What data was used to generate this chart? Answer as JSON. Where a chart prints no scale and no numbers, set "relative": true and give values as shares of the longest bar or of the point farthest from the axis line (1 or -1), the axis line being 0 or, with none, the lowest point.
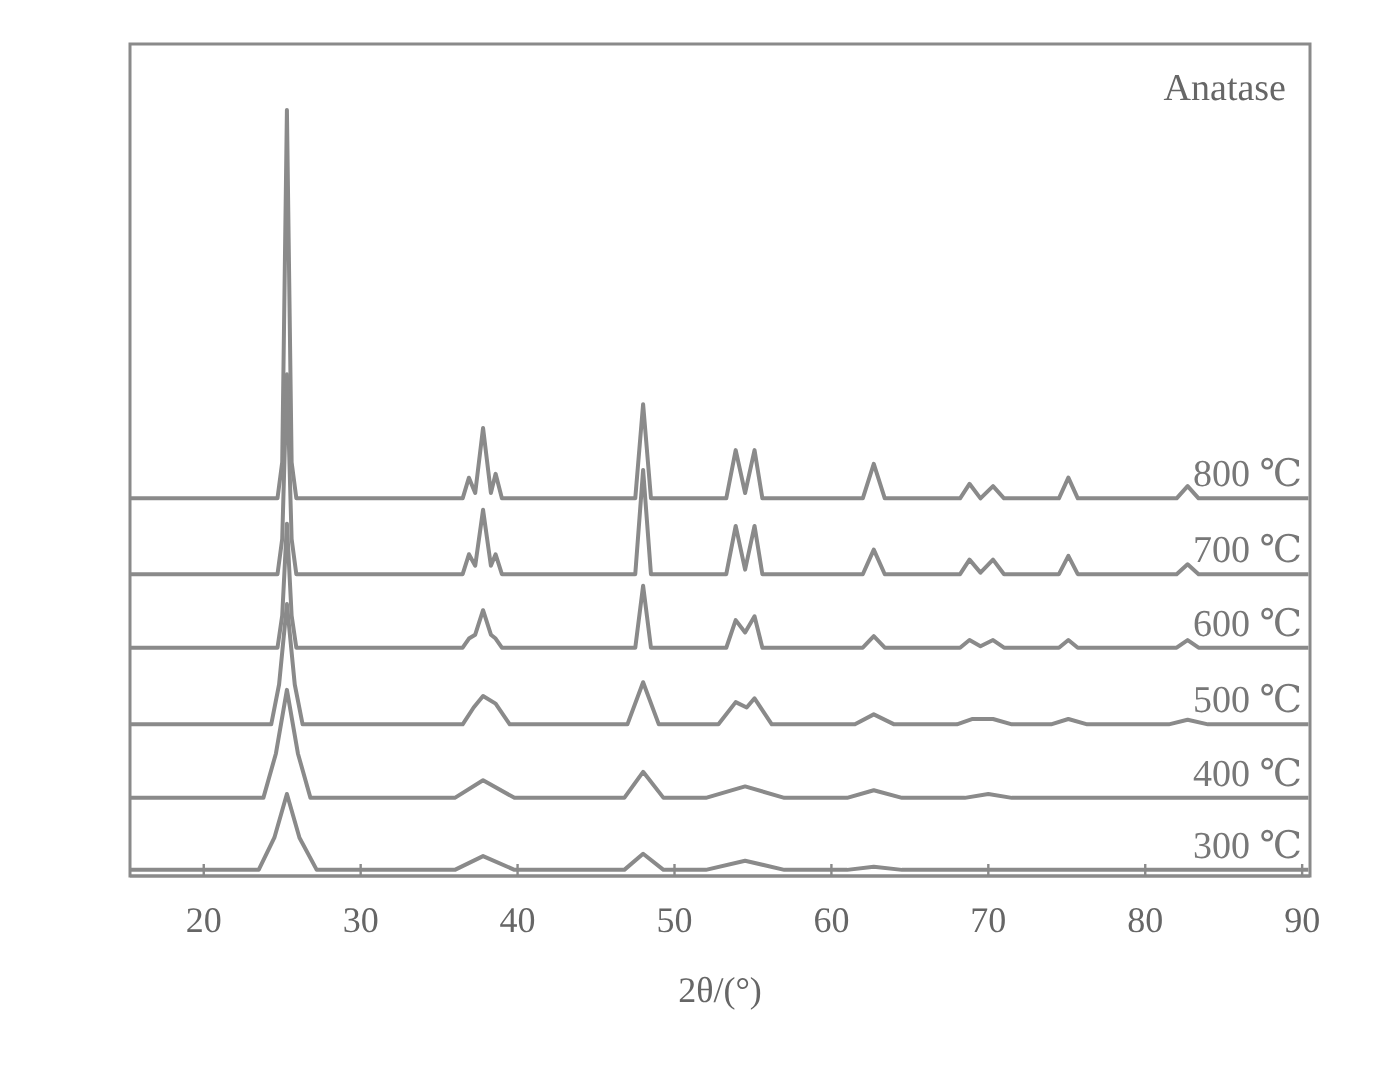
{
  "chart_data": {
    "type": "line",
    "relative": true,
    "xlabel": "2θ/(°)",
    "annotations": [
      "Anatase"
    ],
    "xlim": [
      15.3,
      90.5
    ],
    "xticks": [
      20,
      30,
      40,
      50,
      60,
      70,
      80,
      90
    ],
    "series": [
      {
        "name": "800 ℃",
        "color": "#8a8a8a",
        "x": [
          15.3,
          24.7,
          25.0,
          25.3,
          25.6,
          25.9,
          36.5,
          36.9,
          37.3,
          37.8,
          38.3,
          38.6,
          39.0,
          47.5,
          48.0,
          48.5,
          53.3,
          53.9,
          54.5,
          55.1,
          55.6,
          62.0,
          62.7,
          63.4,
          68.2,
          68.8,
          69.5,
          70.3,
          71.0,
          74.5,
          75.1,
          75.7,
          82.0,
          82.7,
          83.4,
          90.4
        ],
        "values": [
          0.493,
          0.493,
          0.54,
          1.0,
          0.54,
          0.493,
          0.493,
          0.52,
          0.5,
          0.585,
          0.5,
          0.525,
          0.493,
          0.493,
          0.616,
          0.493,
          0.493,
          0.556,
          0.5,
          0.556,
          0.493,
          0.493,
          0.538,
          0.493,
          0.493,
          0.512,
          0.493,
          0.509,
          0.493,
          0.493,
          0.52,
          0.493,
          0.493,
          0.509,
          0.493,
          0.493
        ]
      },
      {
        "name": "700 ℃",
        "color": "#8a8a8a",
        "x": [
          15.3,
          24.7,
          25.0,
          25.3,
          25.6,
          25.9,
          36.5,
          36.9,
          37.3,
          37.8,
          38.3,
          38.6,
          39.0,
          47.5,
          48.0,
          48.5,
          53.3,
          53.9,
          54.5,
          55.1,
          55.6,
          62.0,
          62.7,
          63.4,
          68.2,
          68.8,
          69.5,
          70.3,
          71.0,
          74.5,
          75.1,
          75.7,
          82.0,
          82.7,
          83.4,
          90.4
        ],
        "values": [
          0.394,
          0.394,
          0.44,
          0.655,
          0.44,
          0.394,
          0.394,
          0.42,
          0.405,
          0.478,
          0.405,
          0.42,
          0.394,
          0.394,
          0.53,
          0.394,
          0.394,
          0.457,
          0.4,
          0.457,
          0.394,
          0.394,
          0.426,
          0.394,
          0.394,
          0.413,
          0.396,
          0.413,
          0.394,
          0.394,
          0.418,
          0.394,
          0.394,
          0.407,
          0.394,
          0.394
        ]
      },
      {
        "name": "600 ℃",
        "color": "#8a8a8a",
        "x": [
          15.3,
          24.7,
          25.0,
          25.3,
          25.6,
          25.9,
          36.5,
          36.9,
          37.3,
          37.8,
          38.3,
          38.6,
          39.0,
          47.5,
          48.0,
          48.5,
          53.3,
          53.9,
          54.5,
          55.1,
          55.6,
          62.0,
          62.7,
          63.4,
          68.2,
          68.8,
          69.5,
          70.3,
          71.0,
          74.5,
          75.1,
          75.7,
          82.0,
          82.7,
          83.4,
          90.4
        ],
        "values": [
          0.298,
          0.298,
          0.34,
          0.46,
          0.34,
          0.298,
          0.298,
          0.31,
          0.315,
          0.347,
          0.315,
          0.31,
          0.298,
          0.298,
          0.379,
          0.298,
          0.298,
          0.334,
          0.318,
          0.339,
          0.298,
          0.298,
          0.313,
          0.298,
          0.298,
          0.308,
          0.3,
          0.308,
          0.298,
          0.298,
          0.308,
          0.298,
          0.298,
          0.308,
          0.298,
          0.298
        ]
      },
      {
        "name": "500 ℃",
        "color": "#8a8a8a",
        "x": [
          15.3,
          24.3,
          24.8,
          25.3,
          25.8,
          26.3,
          36.5,
          37.2,
          37.8,
          38.6,
          39.5,
          47.0,
          48.0,
          49.0,
          52.8,
          53.9,
          54.6,
          55.1,
          56.2,
          61.5,
          62.7,
          64.0,
          68.0,
          69.0,
          70.3,
          71.5,
          74.0,
          75.1,
          76.3,
          81.5,
          82.7,
          84.0,
          90.4
        ],
        "values": [
          0.198,
          0.198,
          0.25,
          0.355,
          0.25,
          0.198,
          0.198,
          0.22,
          0.235,
          0.225,
          0.198,
          0.198,
          0.253,
          0.198,
          0.198,
          0.227,
          0.22,
          0.232,
          0.198,
          0.198,
          0.211,
          0.198,
          0.198,
          0.205,
          0.205,
          0.198,
          0.198,
          0.205,
          0.198,
          0.198,
          0.204,
          0.198,
          0.198
        ]
      },
      {
        "name": "400 ℃",
        "color": "#8a8a8a",
        "x": [
          15.3,
          23.8,
          24.6,
          25.3,
          26.0,
          26.8,
          36.0,
          37.8,
          39.8,
          46.8,
          48.0,
          49.3,
          52.0,
          54.5,
          57.0,
          61.0,
          62.7,
          64.5,
          68.5,
          70.0,
          71.5,
          90.4
        ],
        "values": [
          0.102,
          0.102,
          0.16,
          0.243,
          0.16,
          0.102,
          0.102,
          0.125,
          0.102,
          0.102,
          0.136,
          0.102,
          0.102,
          0.117,
          0.102,
          0.102,
          0.112,
          0.102,
          0.102,
          0.107,
          0.102,
          0.102
        ]
      },
      {
        "name": "300 ℃",
        "color": "#8a8a8a",
        "x": [
          15.3,
          23.5,
          24.5,
          25.3,
          26.1,
          27.2,
          36.0,
          37.8,
          39.8,
          46.8,
          48.0,
          49.3,
          52.0,
          54.5,
          57.0,
          61.0,
          62.7,
          64.5,
          90.4
        ],
        "values": [
          0.008,
          0.008,
          0.05,
          0.107,
          0.05,
          0.008,
          0.008,
          0.026,
          0.008,
          0.008,
          0.029,
          0.008,
          0.008,
          0.02,
          0.008,
          0.008,
          0.012,
          0.008,
          0.008
        ]
      }
    ]
  }
}
